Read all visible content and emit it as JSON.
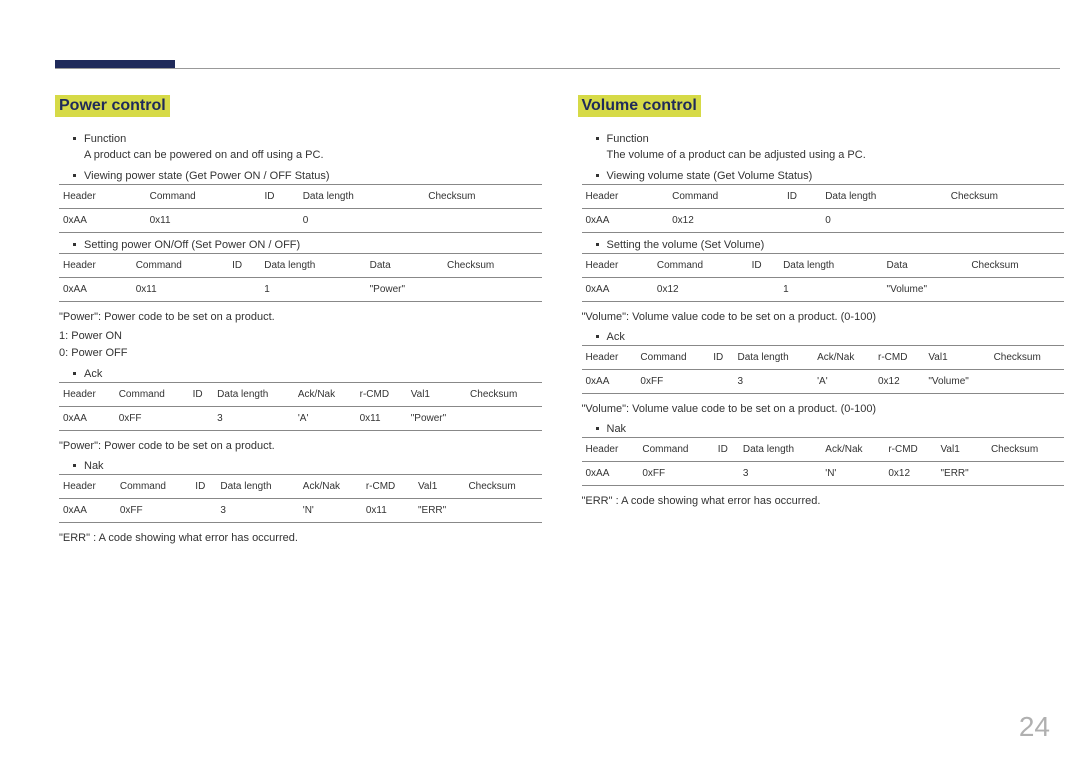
{
  "page_number": "24",
  "left": {
    "title": "Power control",
    "function_label": "Function",
    "function_desc": "A product can be powered on and off using a PC.",
    "view_label": "Viewing power state (Get Power ON / OFF Status)",
    "set_label": "Setting power ON/Off (Set Power ON / OFF)",
    "note1": "\"Power\": Power code to be set on a product.",
    "note1a": "1: Power ON",
    "note1b": "0: Power OFF",
    "ack_label": "Ack",
    "note2": "\"Power\": Power code to be set on a product.",
    "nak_label": "Nak",
    "err_note": "\"ERR\" : A code showing what error has occurred.",
    "t1_head": [
      "Header",
      "Command",
      "ID",
      "Data length",
      "Checksum"
    ],
    "t1_row": [
      "0xAA",
      "0x11",
      "",
      "0",
      ""
    ],
    "t2_head": [
      "Header",
      "Command",
      "ID",
      "Data length",
      "Data",
      "Checksum"
    ],
    "t2_row": [
      "0xAA",
      "0x11",
      "",
      "1",
      "\"Power\"",
      ""
    ],
    "t3_head": [
      "Header",
      "Command",
      "ID",
      "Data length",
      "Ack/Nak",
      "r-CMD",
      "Val1",
      "Checksum"
    ],
    "t3_row": [
      "0xAA",
      "0xFF",
      "",
      "3",
      "'A'",
      "0x11",
      "\"Power\"",
      ""
    ],
    "t4_head": [
      "Header",
      "Command",
      "ID",
      "Data length",
      "Ack/Nak",
      "r-CMD",
      "Val1",
      "Checksum"
    ],
    "t4_row": [
      "0xAA",
      "0xFF",
      "",
      "3",
      "'N'",
      "0x11",
      "\"ERR\"",
      ""
    ]
  },
  "right": {
    "title": "Volume control",
    "function_label": "Function",
    "function_desc": "The volume of a product can be adjusted using a PC.",
    "view_label": "Viewing volume state (Get Volume Status)",
    "set_label": "Setting the volume (Set Volume)",
    "note1": "\"Volume\": Volume value code to be set on a product. (0-100)",
    "ack_label": "Ack",
    "note2": "\"Volume\": Volume value code to be set on a product. (0-100)",
    "nak_label": "Nak",
    "err_note": "\"ERR\" : A code showing what error has occurred.",
    "t1_head": [
      "Header",
      "Command",
      "ID",
      "Data length",
      "Checksum"
    ],
    "t1_row": [
      "0xAA",
      "0x12",
      "",
      "0",
      ""
    ],
    "t2_head": [
      "Header",
      "Command",
      "ID",
      "Data length",
      "Data",
      "Checksum"
    ],
    "t2_row": [
      "0xAA",
      "0x12",
      "",
      "1",
      "\"Volume\"",
      ""
    ],
    "t3_head": [
      "Header",
      "Command",
      "ID",
      "Data length",
      "Ack/Nak",
      "r-CMD",
      "Val1",
      "Checksum"
    ],
    "t3_row": [
      "0xAA",
      "0xFF",
      "",
      "3",
      "'A'",
      "0x12",
      "\"Volume\"",
      ""
    ],
    "t4_head": [
      "Header",
      "Command",
      "ID",
      "Data length",
      "Ack/Nak",
      "r-CMD",
      "Val1",
      "Checksum"
    ],
    "t4_row": [
      "0xAA",
      "0xFF",
      "",
      "3",
      "'N'",
      "0x12",
      "\"ERR\"",
      ""
    ]
  }
}
